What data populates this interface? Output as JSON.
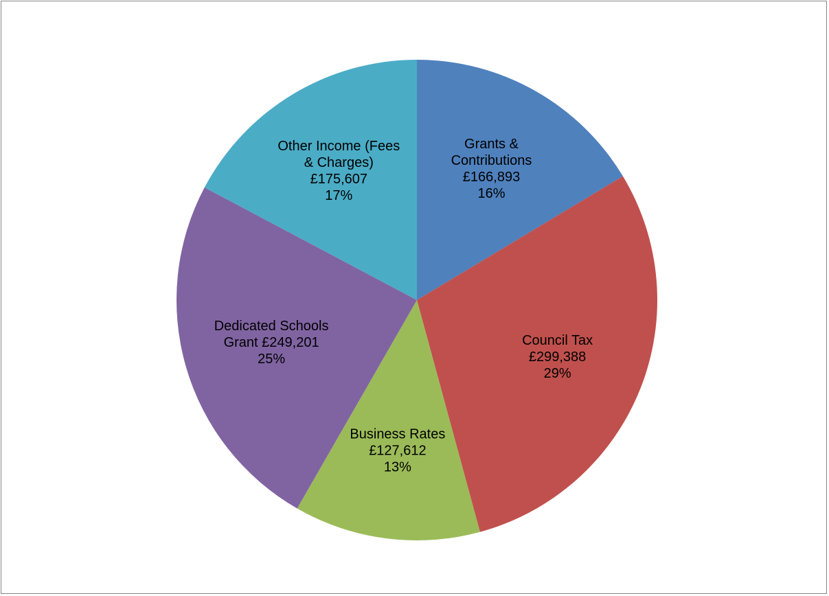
{
  "chart_data": {
    "type": "pie",
    "title": "",
    "start_angle_deg": 0,
    "direction": "clockwise",
    "legend": "none",
    "slices": [
      {
        "name": "Grants & Contributions",
        "value": 166893,
        "value_label": "£166,893",
        "percent": 16,
        "percent_label": "16%",
        "label_lines": [
          "Grants &",
          "Contributions",
          "£166,893",
          "16%"
        ],
        "color": "#4F81BD"
      },
      {
        "name": "Council Tax",
        "value": 299388,
        "value_label": "£299,388",
        "percent": 29,
        "percent_label": "29%",
        "label_lines": [
          "Council Tax",
          "£299,388",
          "29%"
        ],
        "color": "#C0504D"
      },
      {
        "name": "Business Rates",
        "value": 127612,
        "value_label": "£127,612",
        "percent": 13,
        "percent_label": "13%",
        "label_lines": [
          "Business Rates",
          "£127,612",
          "13%"
        ],
        "color": "#9BBB59"
      },
      {
        "name": "Dedicated Schools Grant",
        "value": 249201,
        "value_label": "£249,201",
        "percent": 25,
        "percent_label": "25%",
        "label_lines": [
          "Dedicated Schools",
          "Grant £249,201",
          "25%"
        ],
        "color": "#8064A2"
      },
      {
        "name": "Other Income (Fees & Charges)",
        "value": 175607,
        "value_label": "£175,607",
        "percent": 17,
        "percent_label": "17%",
        "label_lines": [
          "Other Income (Fees",
          "& Charges)",
          "£175,607",
          "17%"
        ],
        "color": "#4BACC6"
      }
    ]
  }
}
